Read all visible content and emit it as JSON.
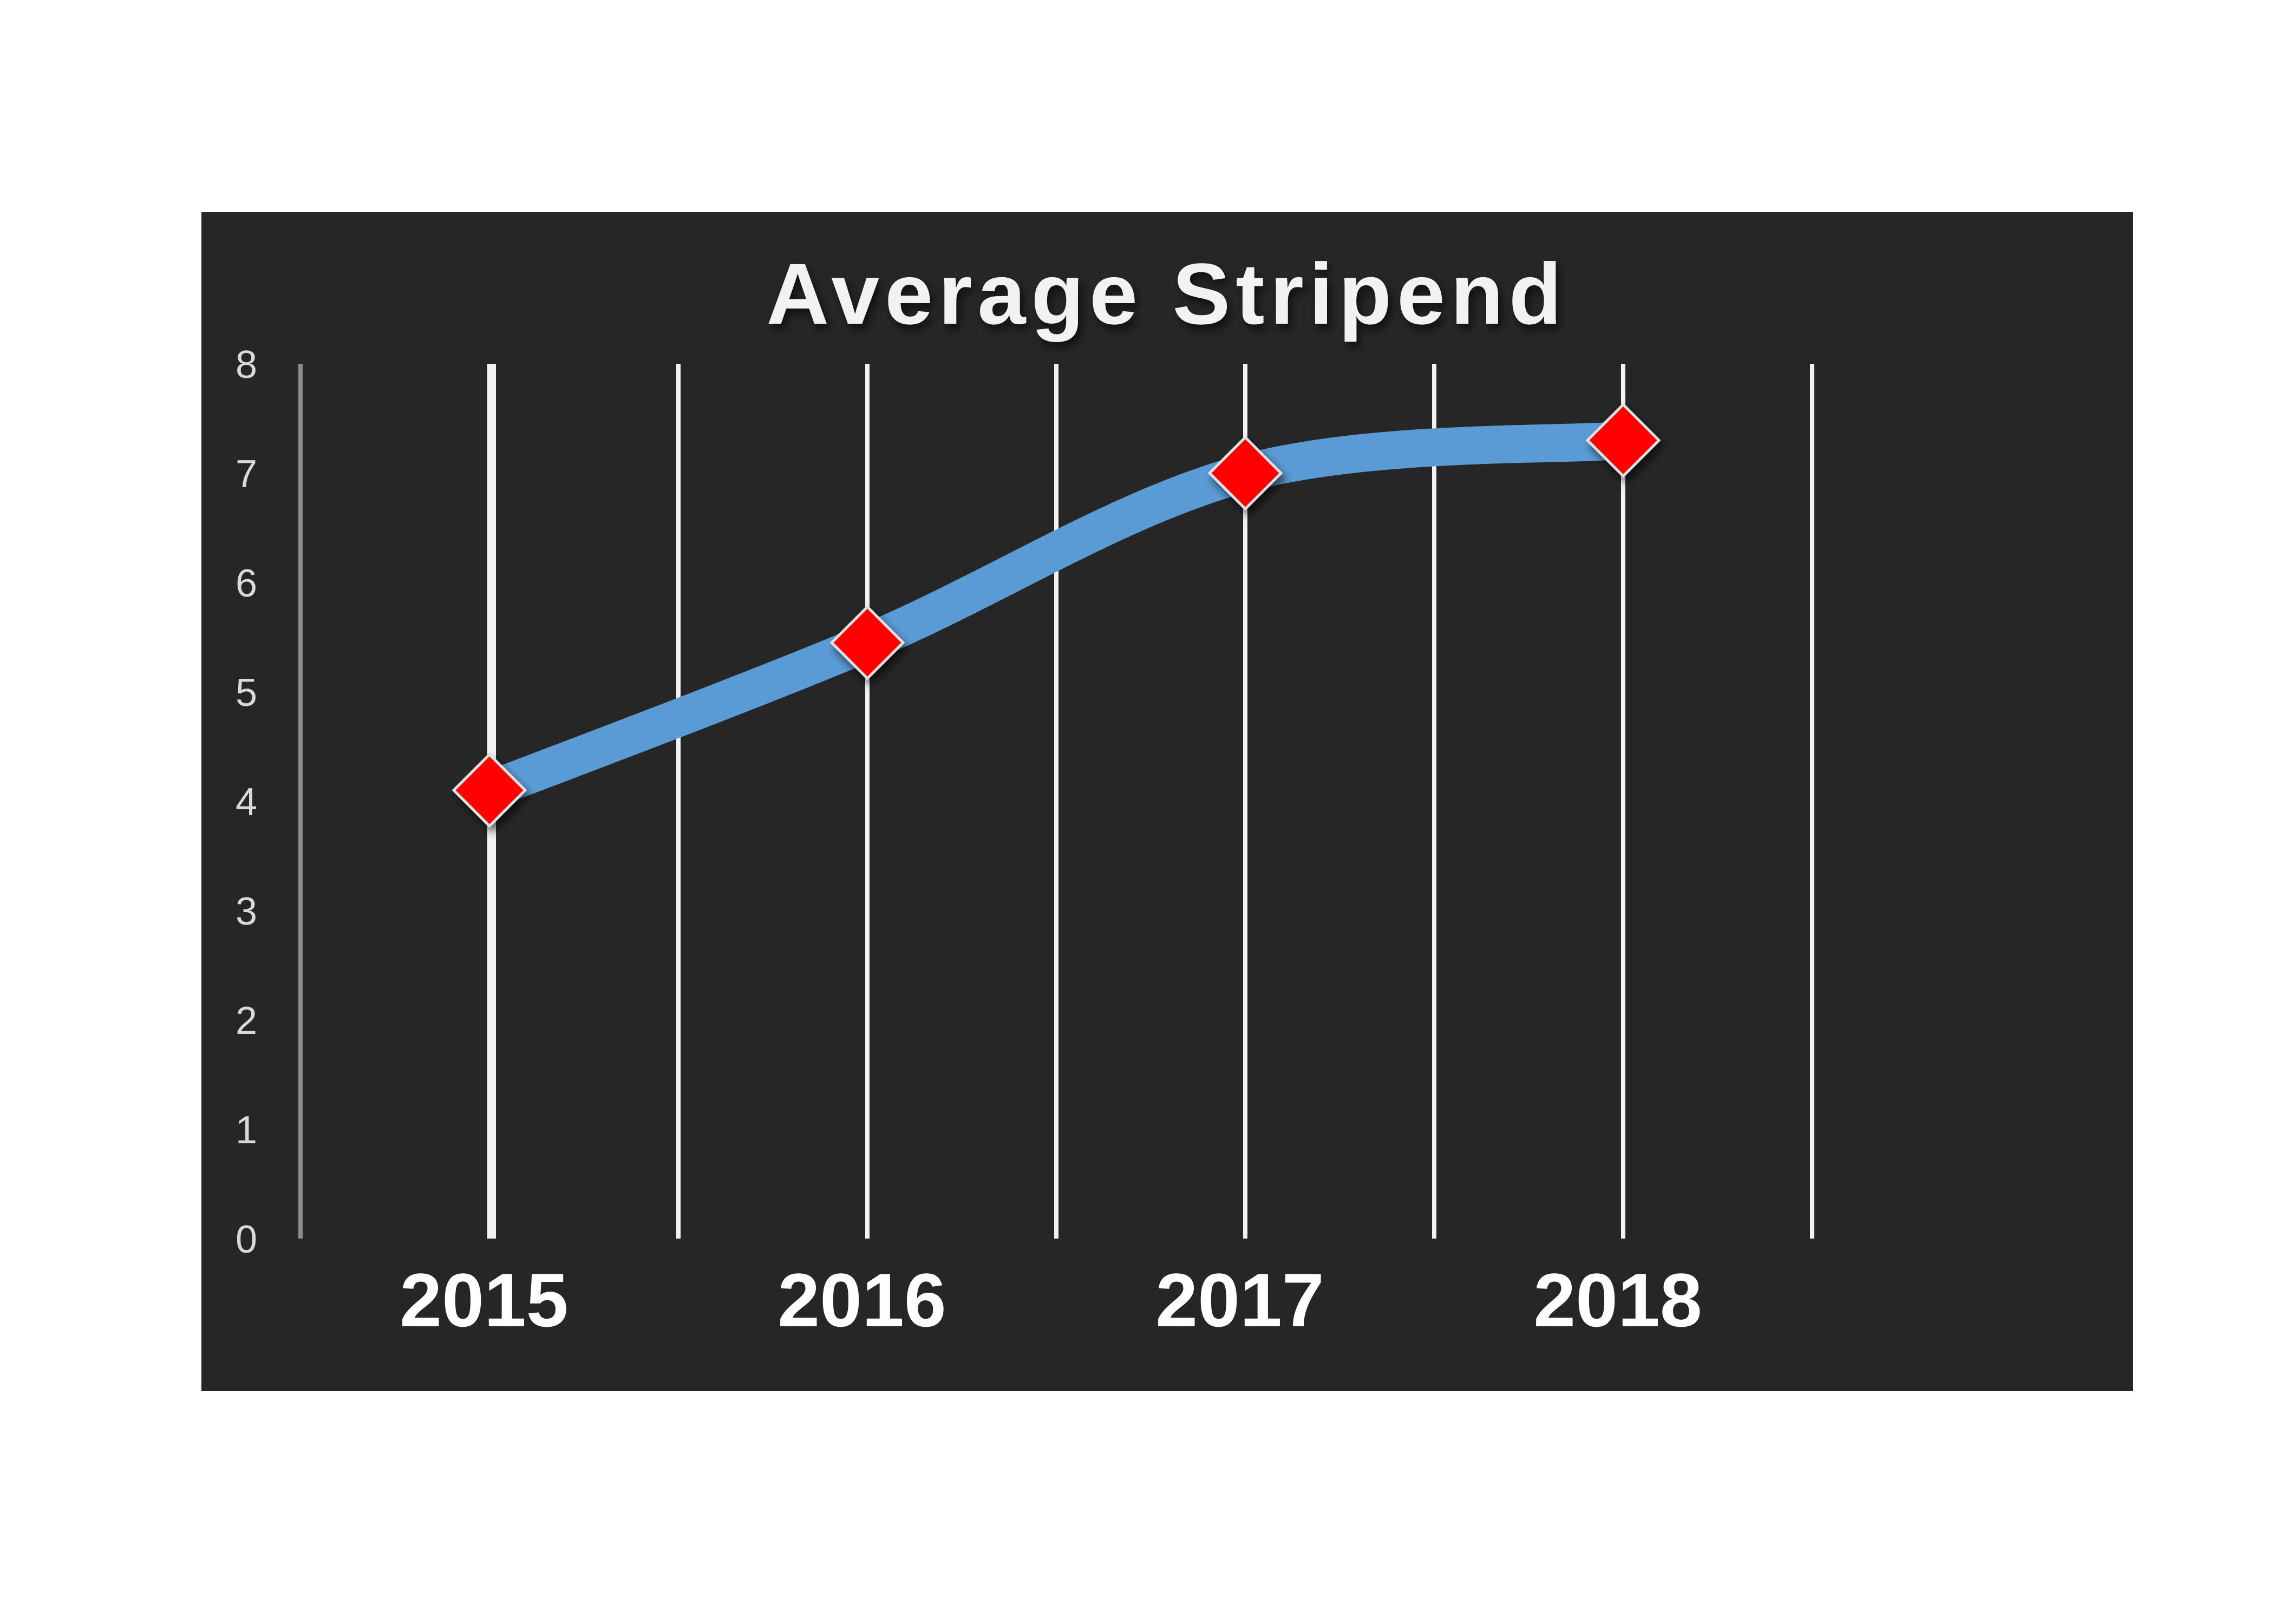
{
  "chart_data": {
    "type": "line",
    "title": "Average  Stripend",
    "xlabel": "",
    "ylabel": "",
    "categories": [
      "2015",
      "2016",
      "2017",
      "2018"
    ],
    "series": [
      {
        "values": [
          4.1,
          5.45,
          7.0,
          7.3
        ]
      }
    ],
    "ylim": [
      0,
      8
    ],
    "yticks": [
      "0",
      "1",
      "2",
      "3",
      "4",
      "5",
      "6",
      "7",
      "8"
    ],
    "grid": "vertical",
    "line_color": "#5b9bd5",
    "marker_color": "#ff0000",
    "background_color": "#262626"
  }
}
